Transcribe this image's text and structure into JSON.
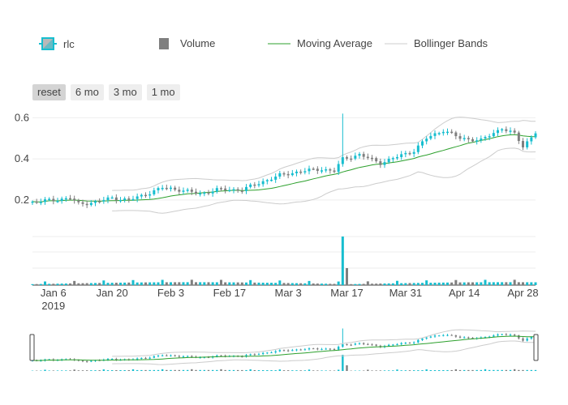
{
  "legend": [
    {
      "label": "rlc",
      "icon": "candlestick-icon"
    },
    {
      "label": "Volume",
      "icon": "bar-icon"
    },
    {
      "label": "Moving Average",
      "icon": "line-icon"
    },
    {
      "label": "Bollinger Bands",
      "icon": "line-icon"
    }
  ],
  "range_selector": {
    "buttons": [
      "reset",
      "6 mo",
      "3 mo",
      "1 mo"
    ],
    "active": "reset"
  },
  "colors": {
    "increasing": "#17becf",
    "decreasing": "#7f7f7f",
    "moving_average": "#2ca02c",
    "bollinger": "#cccccc",
    "grid": "#eeeeee",
    "slider_border": "#444444"
  },
  "chart_data": {
    "type": "candlestick",
    "series_name": "rlc",
    "x_ticks": [
      "Jan 6",
      "Jan 20",
      "Feb 3",
      "Feb 17",
      "Mar 3",
      "Mar 17",
      "Mar 31",
      "Apr 14",
      "Apr 28"
    ],
    "x_tick_year": "2019",
    "x_range": [
      "2019-01-01",
      "2019-05-01"
    ],
    "y_ticks": [
      "0.2",
      "0.4",
      "0.6"
    ],
    "ylim": [
      0.05,
      0.68
    ],
    "close_anchors": [
      [
        "2019-01-01",
        0.19
      ],
      [
        "2019-01-06",
        0.2
      ],
      [
        "2019-01-10",
        0.21
      ],
      [
        "2019-01-12",
        0.18
      ],
      [
        "2019-01-16",
        0.19
      ],
      [
        "2019-01-20",
        0.21
      ],
      [
        "2019-01-24",
        0.2
      ],
      [
        "2019-01-27",
        0.22
      ],
      [
        "2019-02-01",
        0.26
      ],
      [
        "2019-02-05",
        0.25
      ],
      [
        "2019-02-10",
        0.23
      ],
      [
        "2019-02-14",
        0.25
      ],
      [
        "2019-02-20",
        0.25
      ],
      [
        "2019-02-25",
        0.29
      ],
      [
        "2019-03-01",
        0.32
      ],
      [
        "2019-03-06",
        0.34
      ],
      [
        "2019-03-11",
        0.35
      ],
      [
        "2019-03-14",
        0.34
      ],
      [
        "2019-03-16",
        0.4
      ],
      [
        "2019-03-20",
        0.42
      ],
      [
        "2019-03-25",
        0.38
      ],
      [
        "2019-03-29",
        0.41
      ],
      [
        "2019-04-02",
        0.44
      ],
      [
        "2019-04-05",
        0.5
      ],
      [
        "2019-04-09",
        0.54
      ],
      [
        "2019-04-13",
        0.5
      ],
      [
        "2019-04-18",
        0.49
      ],
      [
        "2019-04-23",
        0.55
      ],
      [
        "2019-04-26",
        0.52
      ],
      [
        "2019-04-28",
        0.46
      ],
      [
        "2019-05-01",
        0.53
      ]
    ],
    "spike": {
      "date": "2019-03-16",
      "high": 0.62
    },
    "volume_spikes": [
      {
        "date": "2019-03-16",
        "volume": 1.0
      },
      {
        "date": "2019-03-17",
        "volume": 0.35
      }
    ],
    "moving_average": {
      "name": "Moving Average"
    },
    "bollinger_bands": {
      "name": "Bollinger Bands"
    }
  }
}
